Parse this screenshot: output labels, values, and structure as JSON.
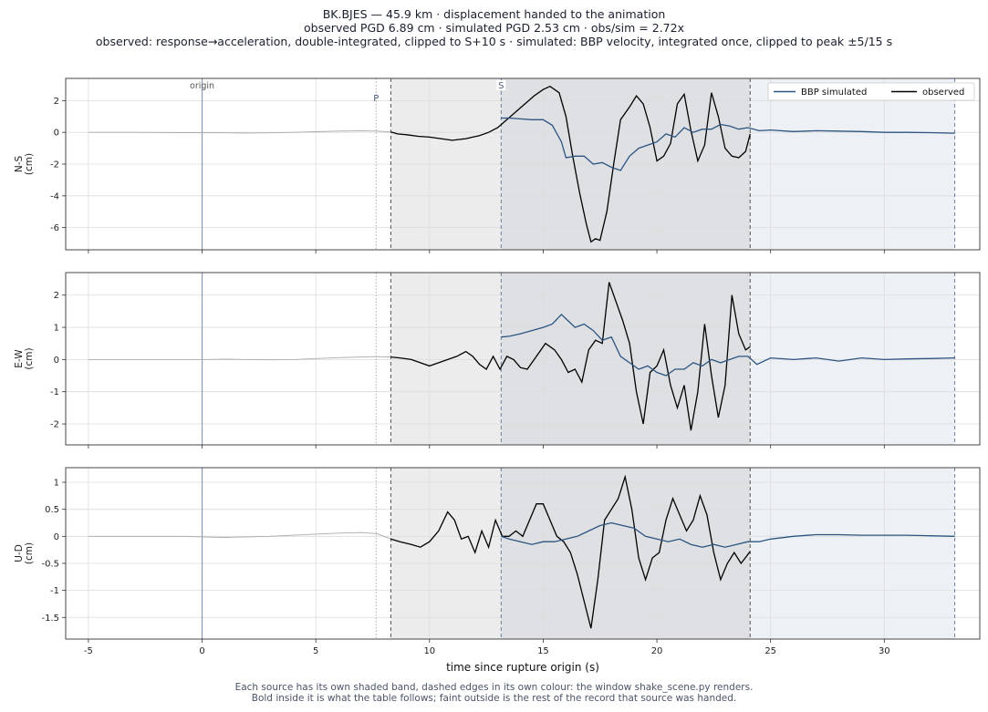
{
  "titles": {
    "line1": "BK.BJES  —  45.9 km   ·   displacement handed to the animation",
    "line2": "observed PGD 6.89 cm   ·   simulated PGD 2.53 cm   ·   obs/sim = 2.72x",
    "line3": "observed: response→acceleration, double-integrated, clipped to S+10 s   ·   simulated: BBP velocity, integrated once, clipped to peak ±5/15 s"
  },
  "footer": {
    "line1": "Each source has its own shaded band, dashed edges in its own colour: the window shake_scene.py renders.",
    "line2": "Bold inside it is what the table follows;   faint outside is the rest of the record that source was handed."
  },
  "colors": {
    "simulated": "#2c5480",
    "observed": "#000000",
    "obs_band": "#ececec",
    "overlap_band": "#dfe0e4",
    "sim_band": "#edf1f5",
    "origin_line": "#8a9ab8"
  },
  "chart_data": {
    "type": "line",
    "xlabel": "time since rupture origin (s)",
    "xlim": [
      -6,
      34.2
    ],
    "xticks": [
      -5,
      0,
      5,
      10,
      15,
      20,
      25,
      30
    ],
    "grid": true,
    "legend": {
      "placement": "top-right",
      "entries": [
        "BBP simulated",
        "observed"
      ]
    },
    "markers": {
      "origin": 0,
      "P": 7.65,
      "S": 13.15
    },
    "marker_labels": {
      "origin": "origin",
      "P": "P",
      "S": "S"
    },
    "windows": {
      "observed": [
        8.3,
        24.1
      ],
      "simulated": [
        13.15,
        33.1
      ]
    },
    "panels": [
      {
        "ylabel": "N-S\n(cm)",
        "ylim": [
          -7.4,
          3.4
        ],
        "yticks": [
          -6,
          -4,
          -2,
          0,
          2
        ],
        "observed": {
          "x": [
            -5,
            -3,
            -1,
            0,
            1,
            2,
            3,
            4,
            5,
            6,
            7,
            7.7,
            8.3,
            8.6,
            9.0,
            9.5,
            10.0,
            10.5,
            11.0,
            11.3,
            11.6,
            11.9,
            12.2,
            12.6,
            13.0,
            13.4,
            13.8,
            14.2,
            14.6,
            15.0,
            15.3,
            15.7,
            16.0,
            16.3,
            16.6,
            16.9,
            17.1,
            17.3,
            17.5,
            17.8,
            18.1,
            18.4,
            18.8,
            19.1,
            19.4,
            19.7,
            20.0,
            20.3,
            20.6,
            20.9,
            21.2,
            21.5,
            21.8,
            22.1,
            22.4,
            22.7,
            23.0,
            23.3,
            23.6,
            23.9,
            24.1
          ],
          "y": [
            0,
            0,
            -0.02,
            -0.02,
            -0.03,
            -0.04,
            -0.03,
            0.0,
            0.04,
            0.08,
            0.1,
            0.08,
            0.03,
            -0.1,
            -0.15,
            -0.25,
            -0.3,
            -0.4,
            -0.5,
            -0.45,
            -0.4,
            -0.3,
            -0.2,
            0.0,
            0.3,
            0.8,
            1.3,
            1.8,
            2.3,
            2.7,
            2.9,
            2.5,
            1.0,
            -1.5,
            -3.8,
            -5.8,
            -6.9,
            -6.7,
            -6.8,
            -5.0,
            -2.0,
            0.8,
            1.6,
            2.3,
            1.8,
            0.3,
            -1.8,
            -1.5,
            -0.7,
            1.8,
            2.4,
            0.1,
            -1.8,
            -0.8,
            2.5,
            1.0,
            -1.0,
            -1.5,
            -1.6,
            -1.2,
            -0.1
          ]
        },
        "simulated": {
          "x": [
            13.15,
            13.5,
            14.0,
            14.5,
            15.0,
            15.4,
            15.8,
            16.0,
            16.4,
            16.8,
            17.2,
            17.6,
            18.0,
            18.4,
            18.8,
            19.2,
            19.6,
            20.0,
            20.4,
            20.8,
            21.2,
            21.6,
            22.0,
            22.4,
            22.8,
            23.2,
            23.6,
            24.0,
            24.5,
            25.0,
            26.0,
            27.0,
            28.0,
            29.0,
            30.0,
            31.0,
            32.0,
            33.1
          ],
          "y": [
            0.9,
            0.9,
            0.85,
            0.8,
            0.8,
            0.45,
            -0.6,
            -1.6,
            -1.5,
            -1.5,
            -2.0,
            -1.9,
            -2.2,
            -2.4,
            -1.5,
            -1.0,
            -0.8,
            -0.6,
            -0.1,
            -0.3,
            0.3,
            0.0,
            0.2,
            0.2,
            0.5,
            0.4,
            0.2,
            0.3,
            0.1,
            0.15,
            0.05,
            0.1,
            0.08,
            0.05,
            0.0,
            0.0,
            -0.02,
            -0.05
          ]
        }
      },
      {
        "ylabel": "E-W\n(cm)",
        "ylim": [
          -2.65,
          2.7
        ],
        "yticks": [
          -2,
          -1,
          0,
          1,
          2
        ],
        "observed": {
          "x": [
            -5,
            -3,
            -1,
            0,
            1,
            2,
            3,
            4,
            5,
            6,
            7,
            7.7,
            8.3,
            8.7,
            9.2,
            9.6,
            10.0,
            10.4,
            10.8,
            11.2,
            11.6,
            11.9,
            12.2,
            12.5,
            12.8,
            13.1,
            13.4,
            13.7,
            14.0,
            14.3,
            14.7,
            15.1,
            15.5,
            15.8,
            16.1,
            16.4,
            16.7,
            17.0,
            17.3,
            17.6,
            17.9,
            18.2,
            18.5,
            18.8,
            19.1,
            19.4,
            19.7,
            20.0,
            20.3,
            20.6,
            20.9,
            21.2,
            21.5,
            21.8,
            22.1,
            22.4,
            22.7,
            23.0,
            23.3,
            23.6,
            23.9,
            24.1
          ],
          "y": [
            0,
            0,
            0,
            0,
            0.01,
            0.0,
            -0.01,
            0.0,
            0.03,
            0.06,
            0.08,
            0.09,
            0.08,
            0.05,
            0.0,
            -0.1,
            -0.2,
            -0.1,
            0.0,
            0.1,
            0.25,
            0.1,
            -0.15,
            -0.3,
            0.1,
            -0.3,
            0.1,
            0.0,
            -0.25,
            -0.3,
            0.1,
            0.5,
            0.3,
            0.0,
            -0.4,
            -0.3,
            -0.7,
            0.3,
            0.6,
            0.5,
            2.4,
            1.8,
            1.2,
            0.5,
            -1.0,
            -2.0,
            -0.4,
            -0.2,
            0.3,
            -0.8,
            -1.5,
            -0.8,
            -2.2,
            -1.0,
            1.1,
            -0.5,
            -1.8,
            -0.8,
            2.0,
            0.8,
            0.3,
            0.4
          ]
        },
        "simulated": {
          "x": [
            13.15,
            13.5,
            14.0,
            14.5,
            15.0,
            15.4,
            15.8,
            16.1,
            16.4,
            16.8,
            17.2,
            17.6,
            18.0,
            18.4,
            18.8,
            19.2,
            19.6,
            20.0,
            20.4,
            20.8,
            21.2,
            21.6,
            22.0,
            22.4,
            22.8,
            23.2,
            23.6,
            24.0,
            24.4,
            25.0,
            26.0,
            27.0,
            28.0,
            29.0,
            30.0,
            31.0,
            32.0,
            33.1
          ],
          "y": [
            0.7,
            0.72,
            0.8,
            0.9,
            1.0,
            1.1,
            1.4,
            1.2,
            1.0,
            1.1,
            0.9,
            0.6,
            0.7,
            0.1,
            -0.1,
            -0.3,
            -0.2,
            -0.4,
            -0.5,
            -0.3,
            -0.3,
            -0.1,
            -0.2,
            0.0,
            -0.1,
            0.0,
            0.1,
            0.1,
            -0.15,
            0.05,
            0.0,
            0.05,
            -0.05,
            0.05,
            0.0,
            0.02,
            0.03,
            0.05
          ]
        }
      },
      {
        "ylabel": "U-D\n(cm)",
        "ylim": [
          -1.9,
          1.27
        ],
        "yticks": [
          -1.5,
          -1.0,
          -0.5,
          0.0,
          0.5,
          1.0
        ],
        "observed": {
          "x": [
            -5,
            -3,
            -1,
            0,
            1,
            2,
            3,
            4,
            5,
            6,
            7,
            7.7,
            8.3,
            8.7,
            9.2,
            9.6,
            10.0,
            10.4,
            10.8,
            11.1,
            11.4,
            11.7,
            12.0,
            12.3,
            12.6,
            12.9,
            13.2,
            13.5,
            13.8,
            14.1,
            14.4,
            14.7,
            15.0,
            15.3,
            15.6,
            15.9,
            16.2,
            16.5,
            16.8,
            17.1,
            17.4,
            17.7,
            18.0,
            18.3,
            18.6,
            18.9,
            19.2,
            19.5,
            19.8,
            20.1,
            20.4,
            20.7,
            21.0,
            21.3,
            21.6,
            21.9,
            22.2,
            22.5,
            22.8,
            23.1,
            23.4,
            23.7,
            24.1
          ],
          "y": [
            0,
            0,
            0,
            -0.01,
            -0.02,
            -0.01,
            0.0,
            0.02,
            0.04,
            0.06,
            0.07,
            0.05,
            -0.05,
            -0.1,
            -0.15,
            -0.2,
            -0.1,
            0.1,
            0.45,
            0.3,
            -0.05,
            0.0,
            -0.3,
            0.1,
            -0.2,
            0.3,
            0.0,
            0.0,
            0.1,
            0.0,
            0.3,
            0.6,
            0.6,
            0.3,
            0.0,
            -0.1,
            -0.3,
            -0.7,
            -1.2,
            -1.7,
            -0.8,
            0.3,
            0.5,
            0.7,
            1.1,
            0.5,
            -0.4,
            -0.8,
            -0.4,
            -0.3,
            0.3,
            0.7,
            0.4,
            0.1,
            0.3,
            0.75,
            0.4,
            -0.3,
            -0.8,
            -0.5,
            -0.3,
            -0.5,
            -0.28
          ]
        },
        "simulated": {
          "x": [
            13.15,
            13.5,
            14.0,
            14.5,
            15.0,
            15.5,
            16.0,
            16.5,
            17.0,
            17.5,
            18.0,
            18.5,
            19.0,
            19.5,
            20.0,
            20.5,
            21.0,
            21.5,
            22.0,
            22.5,
            23.0,
            23.5,
            24.0,
            24.5,
            25.0,
            26.0,
            27.0,
            28.0,
            29.0,
            30.0,
            31.0,
            32.0,
            33.1
          ],
          "y": [
            0.0,
            -0.05,
            -0.1,
            -0.15,
            -0.1,
            -0.1,
            -0.05,
            0.0,
            0.1,
            0.2,
            0.25,
            0.2,
            0.15,
            0.0,
            -0.05,
            -0.1,
            -0.05,
            -0.15,
            -0.2,
            -0.15,
            -0.2,
            -0.15,
            -0.1,
            -0.1,
            -0.05,
            0.0,
            0.03,
            0.03,
            0.02,
            0.02,
            0.02,
            0.01,
            0.0
          ]
        }
      }
    ]
  }
}
